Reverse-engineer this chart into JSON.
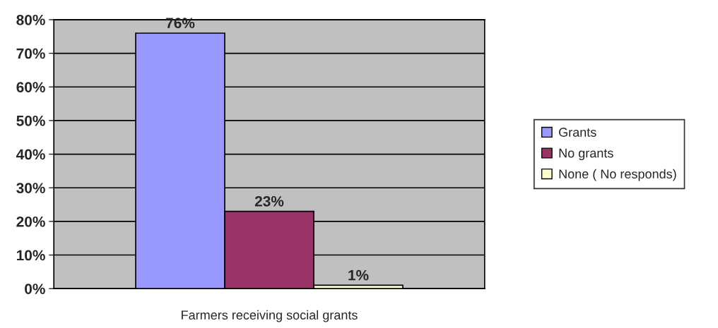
{
  "chart_data": {
    "type": "bar",
    "categories": [
      "Farmers receiving social grants"
    ],
    "series": [
      {
        "name": "Grants",
        "color": "#9999ff",
        "values": [
          76
        ],
        "value_labels": [
          "76%"
        ]
      },
      {
        "name": "No grants",
        "color": "#993366",
        "values": [
          23
        ],
        "value_labels": [
          "23%"
        ]
      },
      {
        "name": "None ( No responds)",
        "color": "#ffffcc",
        "values": [
          1
        ],
        "value_labels": [
          "1%"
        ]
      }
    ],
    "ylim": [
      0,
      80
    ],
    "yticks": [
      {
        "value": 0,
        "label": "0%"
      },
      {
        "value": 10,
        "label": "10%"
      },
      {
        "value": 20,
        "label": "20%"
      },
      {
        "value": 30,
        "label": "30%"
      },
      {
        "value": 40,
        "label": "40%"
      },
      {
        "value": 50,
        "label": "50%"
      },
      {
        "value": 60,
        "label": "60%"
      },
      {
        "value": 70,
        "label": "70%"
      },
      {
        "value": 80,
        "label": "80%"
      }
    ],
    "grid": "y",
    "legend": "right"
  }
}
